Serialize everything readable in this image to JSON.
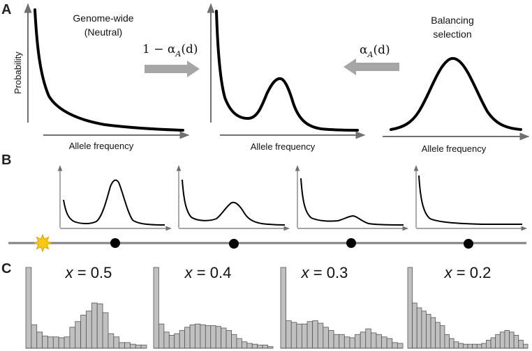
{
  "panels": {
    "a": "A",
    "b": "B",
    "c": "C"
  },
  "panel_a": {
    "neutral_title_1": "Genome-wide",
    "neutral_title_2": "(Neutral)",
    "balancing_title_1": "Balancing",
    "balancing_title_2": "selection",
    "y_axis_label": "Probability",
    "x_axis_label": "Allele frequency",
    "left_arrow_formula": "1 − α",
    "right_arrow_formula": "α",
    "formula_subscript": "A",
    "formula_argument": "(d)"
  },
  "panel_c": {
    "labels": [
      {
        "var": "x",
        "text": " = 0.5"
      },
      {
        "var": "x",
        "text": " = 0.4"
      },
      {
        "var": "x",
        "text": " = 0.3"
      },
      {
        "var": "x",
        "text": " = 0.2"
      }
    ],
    "histograms": [
      [
        1.0,
        0.29,
        0.2,
        0.15,
        0.14,
        0.14,
        0.13,
        0.14,
        0.26,
        0.33,
        0.41,
        0.46,
        0.56,
        0.55,
        0.44,
        0.18,
        0.14,
        0.07,
        0.07,
        0.05,
        0.04,
        0.04
      ],
      [
        1.0,
        0.3,
        0.2,
        0.16,
        0.18,
        0.22,
        0.26,
        0.29,
        0.3,
        0.29,
        0.28,
        0.28,
        0.27,
        0.25,
        0.22,
        0.17,
        0.12,
        0.08,
        0.06,
        0.05,
        0.04,
        0.04,
        0.02
      ],
      [
        1.0,
        0.34,
        0.32,
        0.3,
        0.3,
        0.33,
        0.34,
        0.31,
        0.26,
        0.22,
        0.17,
        0.17,
        0.14,
        0.13,
        0.17,
        0.2,
        0.24,
        0.19,
        0.17,
        0.14,
        0.12,
        0.07,
        0.06
      ],
      [
        1.0,
        0.56,
        0.5,
        0.46,
        0.42,
        0.38,
        0.32,
        0.28,
        0.17,
        0.12,
        0.08,
        0.06,
        0.05,
        0.05,
        0.05,
        0.05,
        0.06,
        0.1,
        0.13,
        0.17,
        0.2,
        0.22,
        0.2,
        0.16,
        0.1,
        0.05
      ]
    ]
  },
  "colors": {
    "curve": "#000000",
    "axis": "#707070",
    "arrow": "#a6a6a6",
    "bar_fill": "#c0c0c0",
    "bar_stroke": "#555555",
    "line": "#808080",
    "star": "#f7c814",
    "star_stroke": "#e0a000"
  },
  "icons": {
    "mutation_marker": "starburst-icon",
    "locus_marker": "dot-icon"
  }
}
